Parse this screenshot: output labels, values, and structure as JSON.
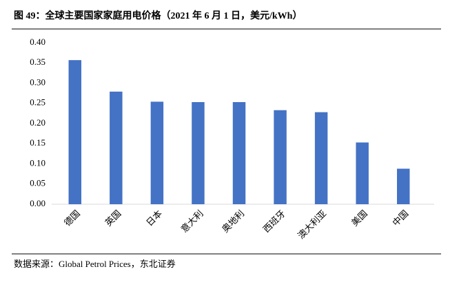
{
  "chart_data": {
    "type": "bar",
    "title": "图 49：全球主要国家家庭用电价格（2021 年 6 月 1 日，美元/kWh）",
    "source": "数据来源：Global Petrol Prices，东北证券",
    "categories": [
      "德国",
      "英国",
      "日本",
      "意大利",
      "奥地利",
      "西班牙",
      "澳大利亚",
      "美国",
      "中国"
    ],
    "values": [
      0.357,
      0.279,
      0.254,
      0.253,
      0.253,
      0.233,
      0.228,
      0.153,
      0.088
    ],
    "color": "#4472c4",
    "ylim": [
      0,
      0.4
    ],
    "yticks": [
      {
        "value": 0,
        "label": "0.00"
      },
      {
        "value": 0.05,
        "label": "0.05"
      },
      {
        "value": 0.1,
        "label": "0.10"
      },
      {
        "value": 0.15,
        "label": "0.15"
      },
      {
        "value": 0.2,
        "label": "0.20"
      },
      {
        "value": 0.25,
        "label": "0.25"
      },
      {
        "value": 0.3,
        "label": "0.30"
      },
      {
        "value": 0.35,
        "label": "0.35"
      },
      {
        "value": 0.4,
        "label": "0.40"
      }
    ],
    "grid": false
  }
}
